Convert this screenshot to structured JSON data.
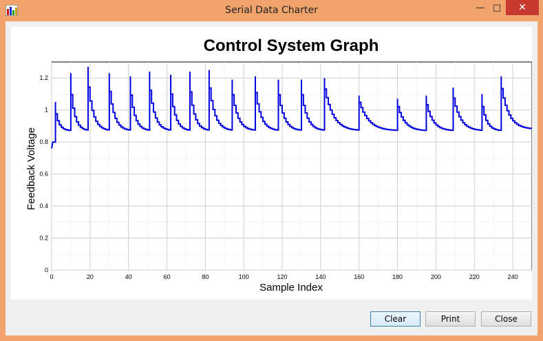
{
  "window": {
    "title": "Serial Data Charter",
    "icons": {
      "app": "chart-app-icon",
      "minimize": "minimize-icon",
      "maximize": "maximize-icon",
      "close": "close-icon"
    },
    "minimize_glyph": "—",
    "maximize_glyph": "□",
    "close_glyph": "✕"
  },
  "buttons": {
    "clear": "Clear",
    "print": "Print",
    "close": "Close"
  },
  "colors": {
    "frame": "#f0a36a",
    "series": "#0000e0",
    "close_button": "#c7382f"
  },
  "chart_data": {
    "type": "line",
    "title": "Control System Graph",
    "xlabel": "Sample Index",
    "ylabel": "Feedback Voltage",
    "xlim": [
      0,
      250
    ],
    "ylim": [
      0,
      1.3
    ],
    "xticks": [
      "0",
      "20",
      "40",
      "60",
      "80",
      "100",
      "120",
      "140",
      "160",
      "180",
      "200",
      "220",
      "240"
    ],
    "yticks": [
      "0",
      "0.2",
      "0.4",
      "0.6",
      "0.8",
      "1",
      "1.2"
    ],
    "grid": true,
    "legend": "none",
    "series": [
      {
        "peaks": [
          [
            2,
            1.05
          ],
          [
            10,
            1.23
          ],
          [
            19,
            1.27
          ],
          [
            30,
            1.23
          ],
          [
            41,
            1.21
          ],
          [
            51,
            1.24
          ],
          [
            62,
            1.22
          ],
          [
            72,
            1.24
          ],
          [
            82,
            1.25
          ],
          [
            94,
            1.19
          ],
          [
            106,
            1.21
          ],
          [
            118,
            1.19
          ],
          [
            130,
            1.19
          ],
          [
            142,
            1.2
          ],
          [
            160,
            1.09
          ],
          [
            180,
            1.07
          ],
          [
            195,
            1.09
          ],
          [
            209,
            1.14
          ],
          [
            224,
            1.1
          ],
          [
            234,
            1.21
          ]
        ],
        "baseline": 0.87,
        "start_value": 0.76,
        "end_x": 250,
        "end_value": 0.88
      }
    ]
  }
}
